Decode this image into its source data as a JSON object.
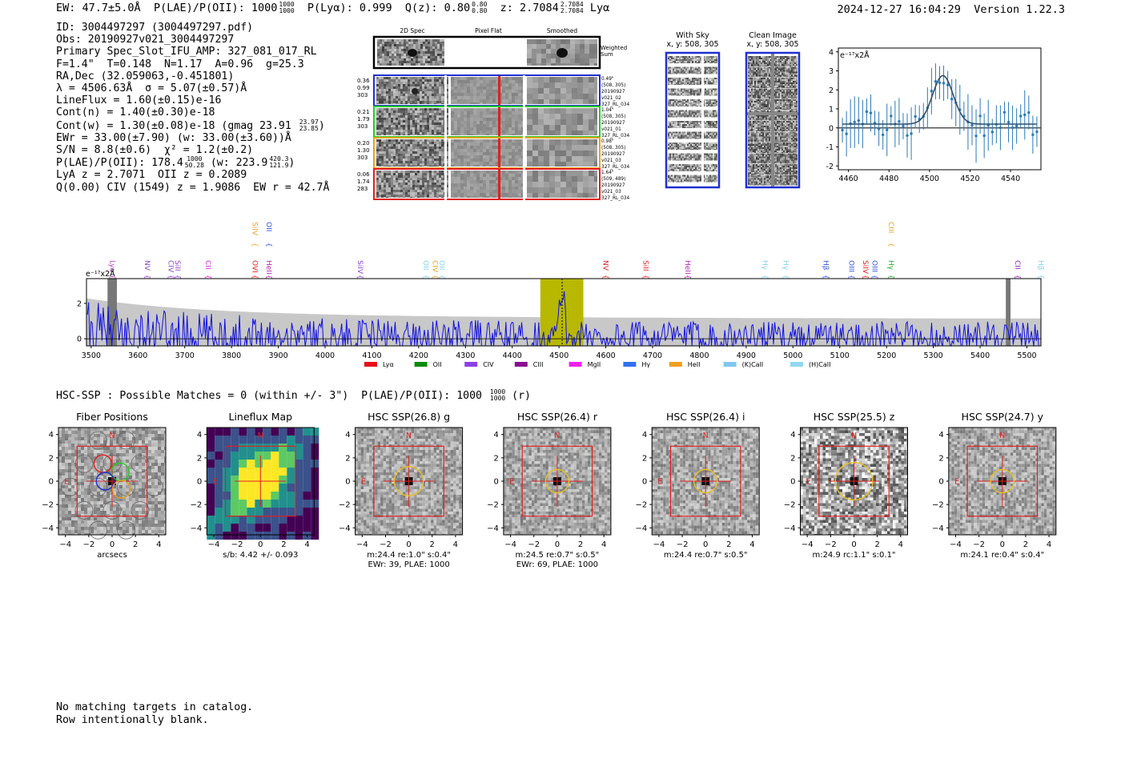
{
  "header": {
    "ew": "EW: 47.7±5.0Å",
    "plae_label": "P(LAE)/P(OII): 1000",
    "plae_hi": "1000",
    "plae_lo": "1000",
    "plya": "P(Lyα): 0.999",
    "qz_label": "Q(z): 0.80",
    "qz_hi": "0.80",
    "qz_lo": "0.80",
    "z_label": "z: 2.7084",
    "z_hi": "2.7084",
    "z_lo": "2.7084",
    "z_line": "Lyα",
    "datetime": "2024-12-27 16:04:29",
    "version": "Version 1.22.3"
  },
  "info": {
    "id": "ID: 3004497297 (3004497297.pdf)",
    "obs": "Obs: 20190927v021_3004497297",
    "primary": "Primary Spec_Slot_IFU_AMP: 327_081_017_RL",
    "params": "F=1.4\"  T=0.148  N=1.17  A=0.96  g=25.3",
    "radec": "RA,Dec (32.059063,-0.451801)",
    "lambda": "λ = 4506.63Å  σ = 5.07(±0.57)Å",
    "lineflux": "LineFlux = 1.60(±0.15)e-16",
    "contn": "Cont(n) = 1.40(±0.30)e-18",
    "contw": "Cont(w) = 1.30(±0.08)e-18 (gmag 23.91",
    "contw_hi": "23.97",
    "contw_lo": "23.85",
    "ewr": "EWr = 33.00(±7.90) (w: 33.00(±3.60))Å",
    "sn": "S/N = 8.8(±0.6)  χ² = 1.2(±0.2)",
    "plae2": "P(LAE)/P(OII): 178.4",
    "plae2_hi": "1000",
    "plae2_lo": "50.28",
    "plae2_w": "(w: 223.9",
    "plae2_w_hi": "420.3",
    "plae2_w_lo": "121.9",
    "lya": "LyA z = 2.7071  OII z = 0.2089",
    "civ": "Q(0.00) CIV (1549) z = 1.9086  EW r = 42.7Å"
  },
  "cutouts": {
    "col_titles": [
      "2D Spec",
      "Pixel Flat",
      "Smoothed"
    ],
    "weighted_sum": "Weighted Sum",
    "rows": [
      {
        "vals": [
          "0.36",
          "0.99",
          "303"
        ],
        "note": [
          "0.49\"",
          "(508, 305)",
          "20190927",
          "v021_02",
          "327_RL_034"
        ],
        "color": "#1f2fd0"
      },
      {
        "vals": [
          "0.21",
          "1.79",
          "303"
        ],
        "note": [
          "1.04\"",
          "(508, 305)",
          "20190927",
          "v021_01",
          "327_RL_034"
        ],
        "color": "#22cc22"
      },
      {
        "vals": [
          "0.20",
          "1.30",
          "303"
        ],
        "note": [
          "0.98\"",
          "(508, 305)",
          "20190927",
          "v021_03",
          "327_RL_034"
        ],
        "color": "#e8a020"
      },
      {
        "vals": [
          "0.06",
          "1.74",
          "283"
        ],
        "note": [
          "1.64\"",
          "(509, 489)",
          "20190927",
          "v021_03",
          "327_RL_034"
        ],
        "color": "#e02020"
      }
    ]
  },
  "sky_panels": {
    "with_sky": "With Sky",
    "with_sky_xy": "x, y: 508, 305",
    "clean": "Clean Image",
    "clean_xy": "x, y: 508, 305"
  },
  "fit_chart": {
    "type": "line",
    "unit": "e⁻¹⁷x2Å",
    "xlim": [
      4455,
      4555
    ],
    "ylim": [
      -2.2,
      4.2
    ],
    "xticks": [
      4460,
      4480,
      4500,
      4520,
      4540
    ],
    "yticks": [
      -2,
      -1,
      0,
      1,
      2,
      3,
      4
    ],
    "gauss": {
      "amp": 2.55,
      "mu": 4506.6,
      "sigma": 5.07,
      "base": 0.2
    }
  },
  "chart_data": {
    "type": "line",
    "title": "",
    "xlabel": "",
    "ylabel": "e⁻¹⁷x2Å",
    "xlim": [
      3490,
      5530
    ],
    "ylim": [
      -0.4,
      3.4
    ],
    "xticks": [
      3500,
      3600,
      3700,
      3800,
      3900,
      4000,
      4100,
      4200,
      4300,
      4400,
      4500,
      4600,
      4700,
      4800,
      4900,
      5000,
      5100,
      5200,
      5300,
      5400,
      5500
    ],
    "yticks": [
      0,
      2
    ],
    "highlight_band": [
      4460,
      4552
    ],
    "emission_center": 4506.6,
    "masked_bands": [
      [
        3535,
        3555
      ],
      [
        5455,
        5465
      ]
    ],
    "line_labels": [
      {
        "name": "Lyα",
        "x": 3535,
        "color": "#b040b0",
        "row": "low"
      },
      {
        "name": "NV",
        "x": 3610,
        "color": "#8844cc",
        "row": "low"
      },
      {
        "name": "CIV",
        "x": 3660,
        "color": "#8844cc",
        "row": "low"
      },
      {
        "name": "SiII",
        "x": 3675,
        "color": "#8844cc",
        "row": "low"
      },
      {
        "name": "CII",
        "x": 3740,
        "color": "#e020e0",
        "row": "low"
      },
      {
        "name": "OVI",
        "x": 3840,
        "color": "#e02020",
        "row": "low"
      },
      {
        "name": "SiIV",
        "x": 3840,
        "color": "#e8a020",
        "row": "high"
      },
      {
        "name": "HeII",
        "x": 3870,
        "color": "#b020b0",
        "row": "low"
      },
      {
        "name": "OII",
        "x": 3870,
        "color": "#3050e0",
        "row": "high"
      },
      {
        "name": "SiIV",
        "x": 4065,
        "color": "#8844cc",
        "row": "low"
      },
      {
        "name": "OII",
        "x": 4205,
        "color": "#80d0f0",
        "row": "low"
      },
      {
        "name": "CIV",
        "x": 4225,
        "color": "#e8a020",
        "row": "low"
      },
      {
        "name": "OII",
        "x": 4240,
        "color": "#80d0f0",
        "row": "low"
      },
      {
        "name": "NV",
        "x": 4590,
        "color": "#e02020",
        "row": "low"
      },
      {
        "name": "SiII",
        "x": 4675,
        "color": "#e02020",
        "row": "low"
      },
      {
        "name": "HeII",
        "x": 4765,
        "color": "#b020b0",
        "row": "low"
      },
      {
        "name": "Hγ",
        "x": 4930,
        "color": "#80d0f0",
        "row": "low"
      },
      {
        "name": "Hγ",
        "x": 4975,
        "color": "#80d0f0",
        "row": "low"
      },
      {
        "name": "Hβ",
        "x": 5060,
        "color": "#3050e0",
        "row": "low"
      },
      {
        "name": "OIII",
        "x": 5115,
        "color": "#3050e0",
        "row": "low"
      },
      {
        "name": "SiIV",
        "x": 5145,
        "color": "#e02020",
        "row": "low"
      },
      {
        "name": "OIII",
        "x": 5165,
        "color": "#3050e0",
        "row": "low"
      },
      {
        "name": "Hγ",
        "x": 5200,
        "color": "#22aa22",
        "row": "low"
      },
      {
        "name": "CIII",
        "x": 5200,
        "color": "#e8a020",
        "row": "high"
      },
      {
        "name": "CII",
        "x": 5470,
        "color": "#9020b0",
        "row": "low"
      },
      {
        "name": "Hβ",
        "x": 5520,
        "color": "#80d0f0",
        "row": "low"
      }
    ],
    "legend": [
      {
        "name": "Lyα",
        "color": "#e8101a"
      },
      {
        "name": "OII",
        "color": "#0a8a0a"
      },
      {
        "name": "CIV",
        "color": "#8a40e8"
      },
      {
        "name": "CIII",
        "color": "#8a1090"
      },
      {
        "name": "MgII",
        "color": "#f020f0"
      },
      {
        "name": "Hγ",
        "color": "#3070f0"
      },
      {
        "name": "HeII",
        "color": "#f0a020"
      },
      {
        "name": "(K)CaII",
        "color": "#80c8f0"
      },
      {
        "name": "(H)CaII",
        "color": "#90d8f0"
      }
    ]
  },
  "hsc": {
    "summary": "HSC-SSP : Possible Matches = 0 (within +/- 3\")  P(LAE)/P(OII): 1000",
    "summary_hi": "1000",
    "summary_lo": "1000",
    "summary_tail": "(r)",
    "ticks": [
      -4,
      -2,
      0,
      2,
      4
    ],
    "north": "N",
    "east": "E",
    "panels": [
      {
        "title": "Fiber Positions",
        "caption": [
          "arcsecs"
        ],
        "kind": "fibers"
      },
      {
        "title": "Lineflux Map",
        "caption": [
          "s/b: 4.42 +/- 0.093"
        ],
        "kind": "flux"
      },
      {
        "title": "HSC SSP(26.8) g",
        "caption": [
          "m:24.4  re:1.0\"  s:0.4\"",
          "EWr: 39, PLAE: 1000"
        ],
        "kind": "img",
        "circle": 1.25
      },
      {
        "title": "HSC SSP(26.4) r",
        "caption": [
          "m:24.5  re:0.7\"  s:0.5\"",
          "EWr: 69, PLAE: 1000"
        ],
        "kind": "img",
        "circle": 1.0
      },
      {
        "title": "HSC SSP(26.4) i",
        "caption": [
          "m:24.4  re:0.7\"  s:0.5\""
        ],
        "kind": "img",
        "circle": 1.0
      },
      {
        "title": "HSC SSP(25.5) z",
        "caption": [
          "m:24.9  rc:1.1\"  s:0.1\""
        ],
        "kind": "img",
        "circle": 1.6
      },
      {
        "title": "HSC SSP(24.7) y",
        "caption": [
          "m:24.1  re:0.4\"  s:0.4\""
        ],
        "kind": "img",
        "circle": 1.0
      }
    ]
  },
  "footer": {
    "line1": "No matching targets in catalog.",
    "line2": "Row intentionally blank."
  }
}
